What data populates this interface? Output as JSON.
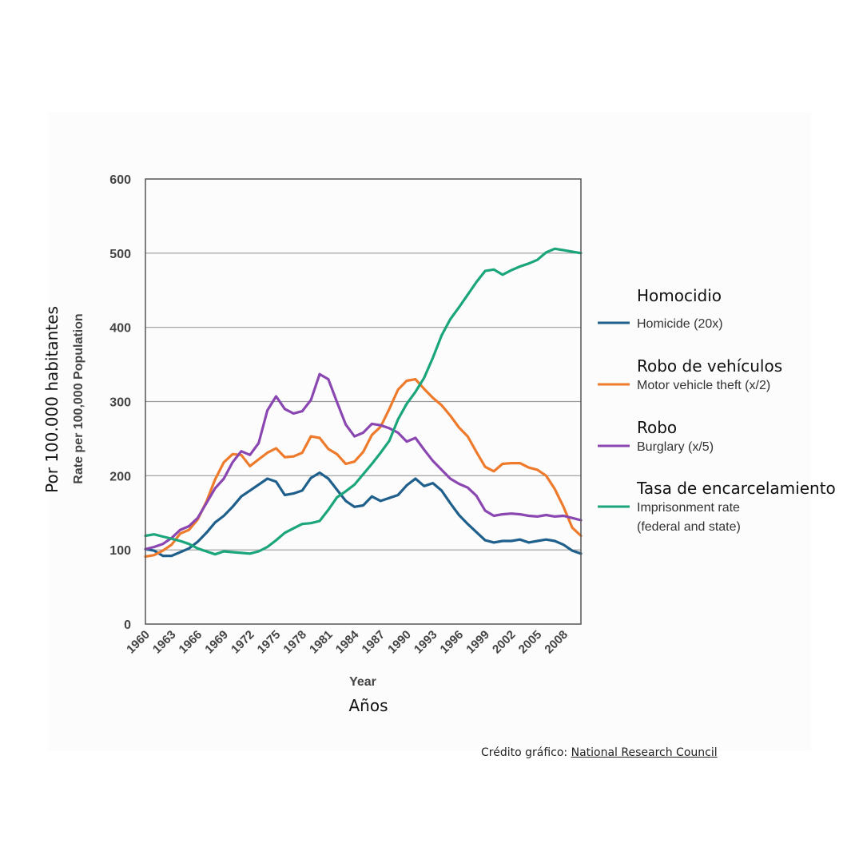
{
  "chart_data": {
    "type": "line",
    "xlabel": "Year",
    "xlabel_es": "Años",
    "ylabel": "Rate per 100,000 Population",
    "ylabel_es": "Por 100.000 habitantes",
    "ylim": [
      0,
      600
    ],
    "yticks": [
      0,
      100,
      200,
      300,
      400,
      500,
      600
    ],
    "xlim": [
      1960,
      2010
    ],
    "xtick_labels": [
      "1960",
      "1963",
      "1966",
      "1969",
      "1972",
      "1975",
      "1978",
      "1981",
      "1984",
      "1987",
      "1990",
      "1993",
      "1996",
      "1999",
      "2002",
      "2005",
      "2008"
    ],
    "grid": "horizontal",
    "legend_position": "right",
    "series": [
      {
        "name": "Homicide (20x)",
        "name_es": "Homocidio",
        "color": "#1f5f8b",
        "x": [
          1960,
          1961,
          1962,
          1963,
          1964,
          1965,
          1966,
          1967,
          1968,
          1969,
          1970,
          1971,
          1972,
          1973,
          1974,
          1975,
          1976,
          1977,
          1978,
          1979,
          1980,
          1981,
          1982,
          1983,
          1984,
          1985,
          1986,
          1987,
          1988,
          1989,
          1990,
          1991,
          1992,
          1993,
          1994,
          1995,
          1996,
          1997,
          1998,
          1999,
          2000,
          2001,
          2002,
          2003,
          2004,
          2005,
          2006,
          2007,
          2008,
          2009,
          2010
        ],
        "values": [
          101,
          99,
          92,
          92,
          97,
          102,
          111,
          123,
          137,
          146,
          158,
          172,
          180,
          188,
          196,
          192,
          174,
          176,
          180,
          197,
          204,
          196,
          181,
          166,
          158,
          160,
          172,
          166,
          170,
          174,
          187,
          196,
          186,
          190,
          180,
          163,
          147,
          135,
          124,
          113,
          110,
          112,
          112,
          114,
          110,
          112,
          114,
          112,
          107,
          99,
          95
        ]
      },
      {
        "name": "Motor vehicle theft (x/2)",
        "name_es": "Robo de vehículos",
        "color": "#ee7b2c",
        "x": [
          1960,
          1961,
          1962,
          1963,
          1964,
          1965,
          1966,
          1967,
          1968,
          1969,
          1970,
          1971,
          1972,
          1973,
          1974,
          1975,
          1976,
          1977,
          1978,
          1979,
          1980,
          1981,
          1982,
          1983,
          1984,
          1985,
          1986,
          1987,
          1988,
          1989,
          1990,
          1991,
          1992,
          1993,
          1994,
          1995,
          1996,
          1997,
          1998,
          1999,
          2000,
          2001,
          2002,
          2003,
          2004,
          2005,
          2006,
          2007,
          2008,
          2009,
          2010
        ],
        "values": [
          91,
          93,
          99,
          107,
          122,
          127,
          141,
          165,
          195,
          218,
          229,
          228,
          213,
          222,
          231,
          237,
          225,
          226,
          231,
          253,
          251,
          236,
          229,
          216,
          219,
          232,
          255,
          266,
          290,
          316,
          328,
          330,
          317,
          305,
          295,
          281,
          265,
          253,
          232,
          212,
          206,
          216,
          217,
          217,
          211,
          208,
          200,
          182,
          158,
          130,
          119
        ]
      },
      {
        "name": "Burglary (x/5)",
        "name_es": "Robo",
        "color": "#8b47b1",
        "x": [
          1960,
          1961,
          1962,
          1963,
          1964,
          1965,
          1966,
          1967,
          1968,
          1969,
          1970,
          1971,
          1972,
          1973,
          1974,
          1975,
          1976,
          1977,
          1978,
          1979,
          1980,
          1981,
          1982,
          1983,
          1984,
          1985,
          1986,
          1987,
          1988,
          1989,
          1990,
          1991,
          1992,
          1993,
          1994,
          1995,
          1996,
          1997,
          1998,
          1999,
          2000,
          2001,
          2002,
          2003,
          2004,
          2005,
          2006,
          2007,
          2008,
          2009,
          2010
        ],
        "values": [
          101,
          104,
          108,
          116,
          127,
          132,
          143,
          163,
          183,
          196,
          218,
          233,
          228,
          244,
          288,
          307,
          290,
          284,
          287,
          302,
          337,
          330,
          299,
          269,
          253,
          258,
          270,
          268,
          264,
          258,
          246,
          251,
          235,
          220,
          208,
          196,
          189,
          184,
          173,
          153,
          146,
          148,
          149,
          148,
          146,
          145,
          147,
          145,
          146,
          143,
          140
        ]
      },
      {
        "name": "Imprisonment rate (federal and state)",
        "name_es": "Tasa de encarcelamiento",
        "color": "#1aa57a",
        "x": [
          1960,
          1961,
          1962,
          1963,
          1964,
          1965,
          1966,
          1967,
          1968,
          1969,
          1970,
          1971,
          1972,
          1973,
          1974,
          1975,
          1976,
          1977,
          1978,
          1979,
          1980,
          1981,
          1982,
          1983,
          1984,
          1985,
          1986,
          1987,
          1988,
          1989,
          1990,
          1991,
          1992,
          1993,
          1994,
          1995,
          1996,
          1997,
          1998,
          1999,
          2000,
          2001,
          2002,
          2003,
          2004,
          2005,
          2006,
          2007,
          2008,
          2009,
          2010
        ],
        "values": [
          119,
          121,
          118,
          115,
          112,
          108,
          102,
          98,
          94,
          98,
          97,
          96,
          95,
          98,
          104,
          113,
          123,
          129,
          135,
          136,
          139,
          154,
          171,
          179,
          188,
          202,
          216,
          231,
          247,
          276,
          297,
          313,
          332,
          359,
          389,
          411,
          427,
          444,
          461,
          476,
          478,
          471,
          477,
          482,
          486,
          491,
          501,
          506,
          504,
          502,
          500
        ]
      }
    ]
  },
  "legend": {
    "items": [
      {
        "label_es": "Homocidio",
        "label_en": "Homicide (20x)",
        "label_en_2": ""
      },
      {
        "label_es": "Robo de vehículos",
        "label_en": "Motor vehicle theft (x/2)",
        "label_en_2": ""
      },
      {
        "label_es": "Robo",
        "label_en": "Burglary (x/5)",
        "label_en_2": ""
      },
      {
        "label_es": "Tasa de encarcelamiento",
        "label_en": "Imprisonment rate",
        "label_en_2": "(federal and state)"
      }
    ]
  },
  "credit": {
    "prefix": "Crédito gráfico: ",
    "link_text": "National Research Council"
  }
}
